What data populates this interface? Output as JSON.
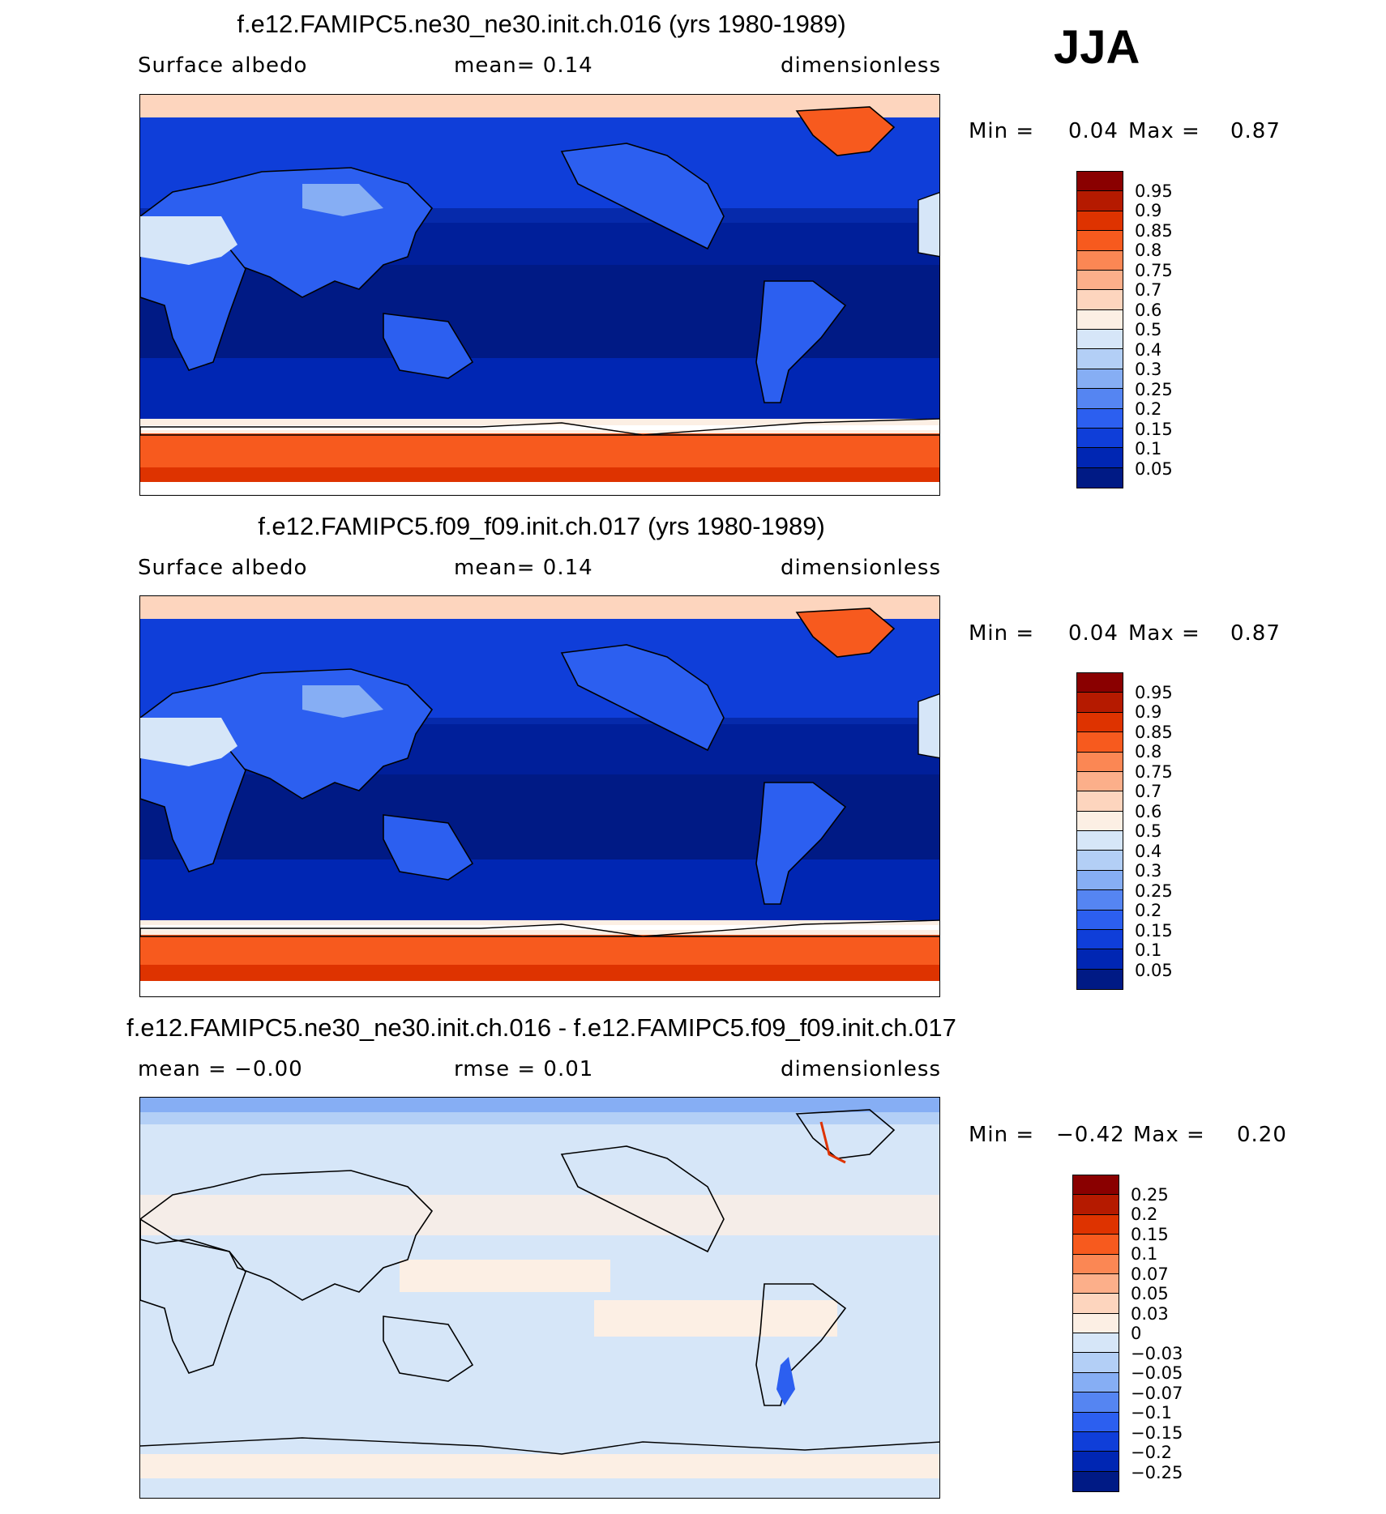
{
  "season": "JJA",
  "panels": [
    {
      "title": "f.e12.FAMIPC5.ne30_ne30.init.ch.016 (yrs 1980-1989)",
      "left_label": "Surface albedo",
      "center_label": "mean=    0.14",
      "right_label": "dimensionless",
      "min_label": "Min =",
      "min_value": "0.04",
      "max_label": "Max =",
      "max_value": "0.87",
      "map_name": "albedo-map-ne30"
    },
    {
      "title": "f.e12.FAMIPC5.f09_f09.init.ch.017 (yrs 1980-1989)",
      "left_label": "Surface albedo",
      "center_label": "mean=    0.14",
      "right_label": "dimensionless",
      "min_label": "Min =",
      "min_value": "0.04",
      "max_label": "Max =",
      "max_value": "0.87",
      "map_name": "albedo-map-f09"
    },
    {
      "title": "f.e12.FAMIPC5.ne30_ne30.init.ch.016 - f.e12.FAMIPC5.f09_f09.init.ch.017",
      "left_label": "mean =   −0.00",
      "center_label": "rmse =    0.01",
      "right_label": "dimensionless",
      "min_label": "Min =",
      "min_value": "−0.42",
      "max_label": "Max =",
      "max_value": "0.20",
      "map_name": "albedo-difference-map"
    }
  ],
  "colorbars": {
    "albedo": {
      "levels": [
        "0.95",
        "0.9",
        "0.85",
        "0.8",
        "0.75",
        "0.7",
        "0.6",
        "0.5",
        "0.4",
        "0.3",
        "0.25",
        "0.2",
        "0.15",
        "0.1",
        "0.05"
      ],
      "colors": [
        "#8a0000",
        "#b51a00",
        "#de3300",
        "#f75a1e",
        "#fb8754",
        "#fcaf8a",
        "#fdd5be",
        "#fcefe4",
        "#d6e6f8",
        "#b3cff6",
        "#86aef4",
        "#5585f2",
        "#2c5ff0",
        "#0f3ed9",
        "#0026b3",
        "#001a85"
      ]
    },
    "difference": {
      "levels": [
        "0.25",
        "0.2",
        "0.15",
        "0.1",
        "0.07",
        "0.05",
        "0.03",
        "0",
        "−0.03",
        "−0.05",
        "−0.07",
        "−0.1",
        "−0.15",
        "−0.2",
        "−0.25"
      ],
      "colors": [
        "#8a0000",
        "#b51a00",
        "#de3300",
        "#f75a1e",
        "#fb8754",
        "#fcaf8a",
        "#fdd5be",
        "#fcefe4",
        "#d6e6f8",
        "#b3cff6",
        "#86aef4",
        "#5585f2",
        "#2c5ff0",
        "#0f3ed9",
        "#0026b3",
        "#001a85"
      ]
    }
  }
}
